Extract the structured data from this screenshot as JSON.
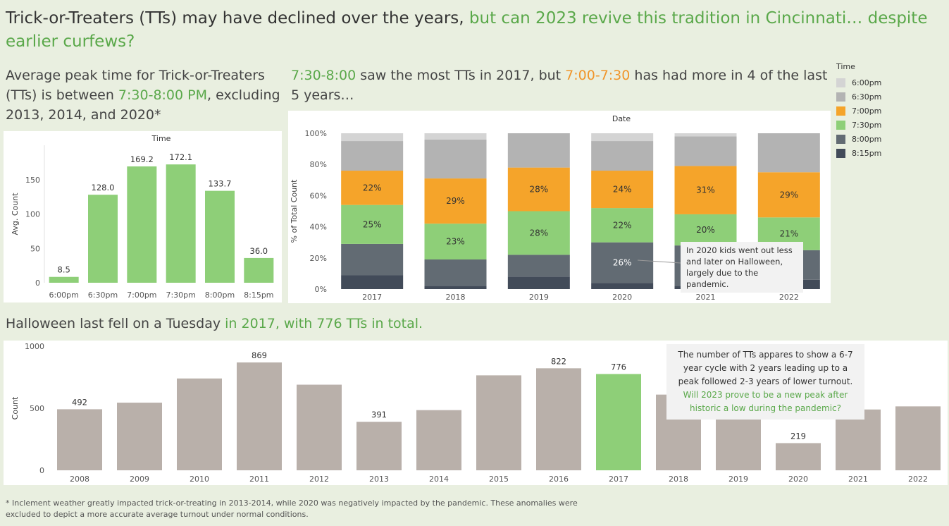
{
  "header": {
    "title_part1": "Trick-or-Treaters (TTs) may have declined over the years,",
    "title_part2": " but can 2023 revive this tradition in Cincinnati… despite earlier curfews?"
  },
  "left_panel": {
    "subtitle_a": "Average peak time for Trick-or-Treaters (TTs) is between ",
    "subtitle_highlight": "7:30-8:00 PM",
    "subtitle_b": ", excluding 2013, 2014, and 2020*"
  },
  "mid_panel": {
    "subtitle_h1": "7:30-8:00",
    "subtitle_a": " saw the most TTs in 2017, but ",
    "subtitle_h2": "7:00-7:30",
    "subtitle_b": " has had more in 4 of the last 5 years…"
  },
  "bottom_panel": {
    "subtitle_a": "Halloween last fell on a Tuesday",
    "subtitle_highlight": " in 2017, with 776 TTs in total."
  },
  "legend": {
    "title": "Time",
    "items": [
      {
        "label": "6:00pm",
        "color": "#d4d4d4"
      },
      {
        "label": "6:30pm",
        "color": "#b3b3b3"
      },
      {
        "label": "7:00pm",
        "color": "#f5a42a"
      },
      {
        "label": "7:30pm",
        "color": "#8ecf78"
      },
      {
        "label": "8:00pm",
        "color": "#626b73"
      },
      {
        "label": "8:15pm",
        "color": "#424b59"
      }
    ]
  },
  "annotations": {
    "pandemic": "In 2020 kids went out less and later on Halloween, largely due to the pandemic.",
    "cycle_a": "The number of TTs appares to show a 6-7 year cycle with 2 years leading up to a peak followed 2-3 years of lower turnout.",
    "cycle_b": "Will 2023 prove to be a new peak after historic a low during the pandemic?"
  },
  "footnote": "* Inclement weather greatly impacted trick-or-treating in 2013-2014, while 2020 was negatively impacted by the pandemic. These anomalies were excluded to depict a more accurate average turnout under normal conditions.",
  "chart_data": [
    {
      "type": "bar",
      "title": "Time",
      "ylabel": "Avg. Count",
      "categories": [
        "6:00pm",
        "6:30pm",
        "7:00pm",
        "7:30pm",
        "8:00pm",
        "8:15pm"
      ],
      "values": [
        8.5,
        128.0,
        169.2,
        172.1,
        133.7,
        36.0
      ],
      "ylim": [
        0,
        200
      ],
      "yticks": [
        0,
        50,
        100,
        150
      ],
      "color": "#8ecf78"
    },
    {
      "type": "bar",
      "stacked": true,
      "normalized": true,
      "title": "Date",
      "ylabel": "% of Total Count",
      "categories": [
        "2017",
        "2018",
        "2019",
        "2020",
        "2021",
        "2022"
      ],
      "yticks": [
        "0%",
        "20%",
        "40%",
        "60%",
        "80%",
        "100%"
      ],
      "series": [
        {
          "name": "8:15pm",
          "color": "#424b59",
          "values": [
            9,
            2,
            8,
            4,
            2,
            6
          ]
        },
        {
          "name": "8:00pm",
          "color": "#626b73",
          "values": [
            20,
            17,
            14,
            26,
            26,
            19
          ]
        },
        {
          "name": "7:30pm",
          "color": "#8ecf78",
          "values": [
            25,
            23,
            28,
            22,
            20,
            21
          ]
        },
        {
          "name": "7:00pm",
          "color": "#f5a42a",
          "values": [
            22,
            29,
            28,
            24,
            31,
            29
          ]
        },
        {
          "name": "6:30pm",
          "color": "#b3b3b3",
          "values": [
            19,
            25,
            22,
            19,
            19,
            25
          ]
        },
        {
          "name": "6:00pm",
          "color": "#d4d4d4",
          "values": [
            5,
            4,
            0,
            5,
            2,
            0
          ]
        }
      ],
      "data_labels": {
        "7:00pm": [
          "22%",
          "29%",
          "28%",
          "24%",
          "31%",
          "29%"
        ],
        "7:30pm": [
          "25%",
          "23%",
          "28%",
          "22%",
          "20%",
          "21%"
        ],
        "8:00pm": [
          "",
          "",
          "",
          "26%",
          "",
          ""
        ]
      }
    },
    {
      "type": "bar",
      "ylabel": "Count",
      "categories": [
        "2008",
        "2009",
        "2010",
        "2011",
        "2012",
        "2013",
        "2014",
        "2015",
        "2016",
        "2017",
        "2018",
        "2019",
        "2020",
        "2021",
        "2022"
      ],
      "values": [
        492,
        545,
        740,
        869,
        690,
        391,
        485,
        765,
        822,
        776,
        610,
        480,
        219,
        490,
        515
      ],
      "labels": [
        "492",
        "",
        "",
        "869",
        "",
        "391",
        "",
        "",
        "822",
        "776",
        "",
        "",
        "219",
        "",
        ""
      ],
      "highlight": "2017",
      "highlight_color": "#8ecf78",
      "color": "#b9b0aa",
      "ylim": [
        0,
        1000
      ],
      "yticks": [
        0,
        500,
        1000
      ]
    }
  ]
}
